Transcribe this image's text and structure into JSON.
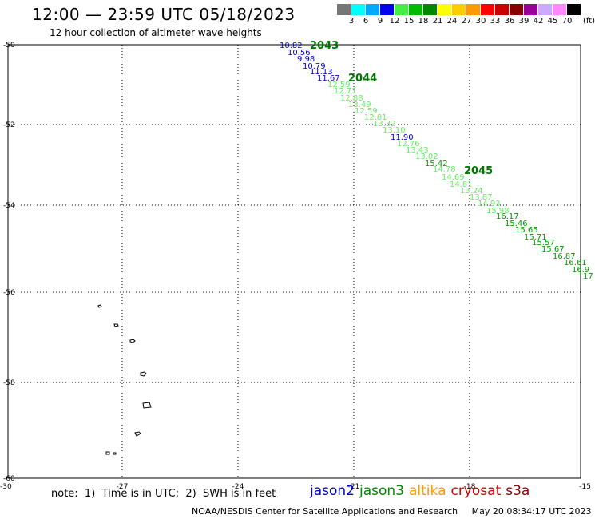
{
  "title": "12:00 — 23:59 UTC 05/18/2023",
  "subtitle": "12 hour collection of altimeter wave heights",
  "color_scale": {
    "colors": [
      "#777777",
      "#00ffff",
      "#00aaff",
      "#0000ee",
      "#44ee44",
      "#00bb00",
      "#008800",
      "#ffff00",
      "#ffcc00",
      "#ff9900",
      "#ff0000",
      "#cc0000",
      "#880000",
      "#990099",
      "#ccaaff",
      "#ff88ff",
      "#000000"
    ],
    "labels": [
      "3",
      "6",
      "9",
      "12",
      "15",
      "18",
      "21",
      "24",
      "27",
      "30",
      "33",
      "36",
      "39",
      "42",
      "45",
      "70"
    ],
    "unit": "(ft)"
  },
  "map": {
    "lat_labels": [
      "-50",
      "-52",
      "-54",
      "-56",
      "-58",
      "-60"
    ],
    "lon_labels": [
      "-30",
      "-27",
      "-24",
      "-21",
      "-18",
      "-15"
    ]
  },
  "passes": [
    {
      "id": "2043",
      "color": "#007700"
    },
    {
      "id": "2044",
      "color": "#007700"
    },
    {
      "id": "2045",
      "color": "#007700"
    }
  ],
  "observations": {
    "blue": [
      "10.82",
      "10.56",
      "9.98",
      "10.79",
      "11.13",
      "11.67",
      "11.90"
    ],
    "light": [
      "12.59",
      "12.71",
      "12.88",
      "13.49",
      "12.59",
      "12.81",
      "13.32",
      "13.10",
      "12.76",
      "13.43",
      "13.02",
      "14.78",
      "14.69",
      "14.81",
      "13.24",
      "13.87",
      "14.93",
      "15.98"
    ],
    "dark": [
      "15.42",
      "16.17",
      "15.46",
      "15.65",
      "15.71",
      "15.57",
      "15.67",
      "16.87",
      "16.61",
      "16.9",
      "17"
    ]
  },
  "note": "note:  1)  Time is in UTC;  2)  SWH is in feet",
  "legend": [
    {
      "name": "jason2",
      "color": "#0000cc"
    },
    {
      "name": "jason3",
      "color": "#008800"
    },
    {
      "name": "altika",
      "color": "#ff9900"
    },
    {
      "name": "cryosat",
      "color": "#cc0000"
    },
    {
      "name": "s3a",
      "color": "#880000"
    }
  ],
  "credit": "NOAA/NESDIS Center for Satellite Applications and Research     May 20 08:34:17 UTC 2023"
}
